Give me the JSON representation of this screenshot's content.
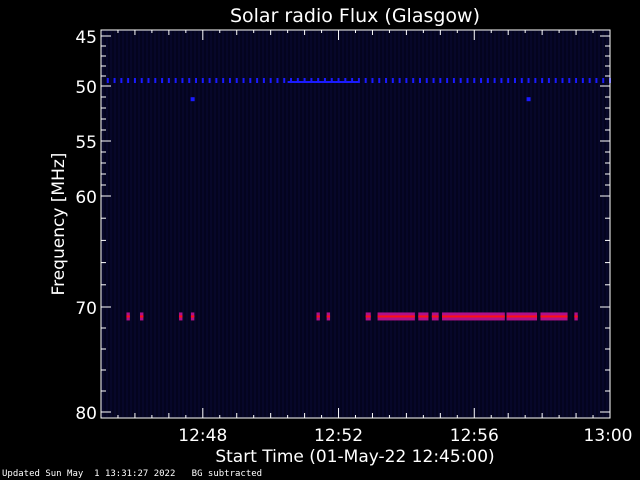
{
  "chart_data": {
    "type": "heatmap",
    "title": "Solar radio Flux (Glasgow)",
    "xlabel": "Start Time (01-May-22 12:45:00)",
    "ylabel": "Frequency [MHz]",
    "x_unit": "minutes after 12:45:00",
    "xlim": [
      0,
      15
    ],
    "ylim": [
      45,
      80
    ],
    "y_ticks": [
      {
        "label": "45",
        "value": 45
      },
      {
        "label": "50",
        "value": 50
      },
      {
        "label": "55",
        "value": 55
      },
      {
        "label": "60",
        "value": 60
      },
      {
        "label": "70",
        "value": 70
      },
      {
        "label": "80",
        "value": 80
      }
    ],
    "x_ticks": [
      {
        "label": "12:48",
        "value": 3
      },
      {
        "label": "12:52",
        "value": 7
      },
      {
        "label": "12:56",
        "value": 11
      },
      {
        "label": "13:00",
        "value": 15
      }
    ],
    "colors": {
      "background": "#000000",
      "plot_bg": "#04041e",
      "axis": "#ffffff",
      "blue": "#1a1aff",
      "magenta": "#b0108a",
      "red": "#ff1010"
    },
    "series": [
      {
        "frequency_mhz": 49.4,
        "color": "blue",
        "style": "periodic",
        "segments": [
          [
            0.2,
            15.0
          ]
        ],
        "solid": [
          [
            5.5,
            7.6
          ]
        ]
      },
      {
        "frequency_mhz": 51.2,
        "color": "blue",
        "style": "points",
        "points": [
          2.7,
          12.6
        ]
      },
      {
        "frequency_mhz": 70.9,
        "color": "red-magenta",
        "style": "bursts",
        "segments": [
          [
            0.75,
            0.85
          ],
          [
            1.15,
            1.25
          ],
          [
            2.3,
            2.4
          ],
          [
            2.65,
            2.75
          ],
          [
            6.35,
            6.45
          ],
          [
            6.65,
            6.75
          ],
          [
            7.8,
            7.95
          ],
          [
            8.15,
            9.25
          ],
          [
            9.35,
            9.65
          ],
          [
            9.75,
            9.95
          ],
          [
            10.05,
            11.9
          ],
          [
            11.95,
            12.85
          ],
          [
            12.95,
            13.75
          ],
          [
            13.95,
            14.05
          ]
        ]
      }
    ]
  },
  "footer": {
    "updated": "Updated Sun May  1 13:31:27 2022   BG subtracted"
  }
}
